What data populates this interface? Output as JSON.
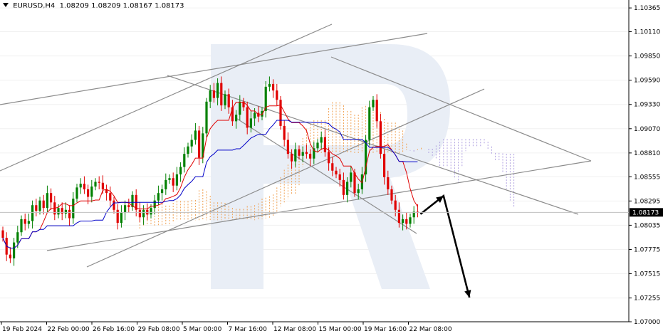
{
  "header": {
    "symbol": "EURUSD,H4",
    "ohlc": "1.08209 1.08209 1.08167 1.08173"
  },
  "chart_data": {
    "type": "candlestick",
    "symbol": "EURUSD",
    "timeframe": "H4",
    "y_ticks": [
      "1.10365",
      "1.10110",
      "1.09850",
      "1.09590",
      "1.09330",
      "1.09070",
      "1.08810",
      "1.08555",
      "1.08295",
      "1.08035",
      "1.07775",
      "1.07515",
      "1.07255",
      "1.07000"
    ],
    "y_range": [
      1.07,
      1.1045
    ],
    "x_ticks": [
      "19 Feb 2024",
      "22 Feb 00:00",
      "26 Feb 16:00",
      "29 Feb 08:00",
      "5 Mar 00:00",
      "7 Mar 16:00",
      "12 Mar 08:00",
      "15 Mar 00:00",
      "19 Mar 16:00",
      "22 Mar 08:00"
    ],
    "current_price": "1.08173",
    "closes": [
      1.079,
      1.0772,
      1.0768,
      1.0785,
      1.0796,
      1.081,
      1.0805,
      1.0808,
      1.0825,
      1.0819,
      1.083,
      1.0822,
      1.0838,
      1.0828,
      1.0815,
      1.0822,
      1.0816,
      1.082,
      1.0811,
      1.0832,
      1.0844,
      1.0848,
      1.0842,
      1.0834,
      1.0845,
      1.085,
      1.0849,
      1.0842,
      1.0838,
      1.083,
      1.082,
      1.0806,
      1.0817,
      1.0825,
      1.0823,
      1.0836,
      1.082,
      1.0812,
      1.082,
      1.0815,
      1.0822,
      1.083,
      1.0838,
      1.0842,
      1.0852,
      1.0854,
      1.0846,
      1.0858,
      1.0866,
      1.088,
      1.0888,
      1.0895,
      1.0905,
      1.0876,
      1.0902,
      1.0936,
      1.0948,
      1.094,
      1.0956,
      1.0932,
      1.0944,
      1.093,
      1.0915,
      1.0922,
      1.0936,
      1.093,
      1.0908,
      1.0918,
      1.0924,
      1.092,
      1.0926,
      1.0952,
      1.0955,
      1.0948,
      1.0938,
      1.091,
      1.0895,
      1.088,
      1.0872,
      1.0885,
      1.0878,
      1.0882,
      1.088,
      1.0875,
      1.0886,
      1.0892,
      1.0898,
      1.0882,
      1.087,
      1.0862,
      1.0858,
      1.0852,
      1.0836,
      1.085,
      1.086,
      1.0838,
      1.0842,
      1.0858,
      1.0895,
      1.093,
      1.0938,
      1.0915,
      1.088,
      1.0855,
      1.0842,
      1.083,
      1.082,
      1.0806,
      1.081,
      1.0805,
      1.0812,
      1.0818,
      1.0817
    ],
    "conversion_line_color": "#e00000",
    "base_line_color": "#0000c8",
    "cloud_colors": [
      "#f0a050",
      "#b0a0e0"
    ],
    "candle_up_color": "#008000",
    "candle_down_color": "#e00000",
    "forecast": [
      {
        "bar": 119,
        "price": 1.0835
      },
      {
        "bar": 126,
        "price": 1.0726
      }
    ],
    "watermark": "R"
  }
}
